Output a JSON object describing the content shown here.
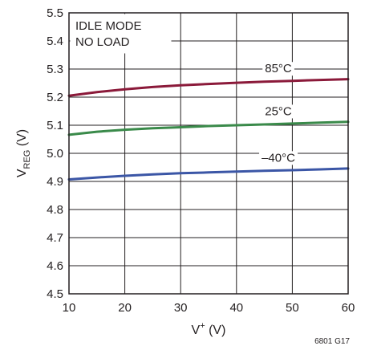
{
  "chart_data": {
    "type": "line",
    "xlim": [
      10,
      60
    ],
    "ylim": [
      4.5,
      5.5
    ],
    "x_ticks": [
      "10",
      "20",
      "30",
      "40",
      "50",
      "60"
    ],
    "y_ticks": [
      "4.5",
      "4.6",
      "4.7",
      "4.8",
      "4.9",
      "5.0",
      "5.1",
      "5.2",
      "5.3",
      "5.4",
      "5.5"
    ],
    "xlabel": {
      "main": "V",
      "sup": "+",
      "unit": " (V)"
    },
    "ylabel": {
      "main": "V",
      "sub": "REG",
      "unit": " (V)"
    },
    "grid": true,
    "annotations": [
      "IDLE MODE",
      "NO LOAD"
    ],
    "series": [
      {
        "name": "85°C",
        "color": "#8b1a3a",
        "x": [
          10,
          15,
          20,
          25,
          30,
          35,
          40,
          45,
          50,
          55,
          60
        ],
        "y": [
          5.205,
          5.218,
          5.228,
          5.236,
          5.242,
          5.247,
          5.251,
          5.255,
          5.258,
          5.261,
          5.264
        ]
      },
      {
        "name": "25°C",
        "color": "#3a8a4a",
        "x": [
          10,
          15,
          20,
          25,
          30,
          35,
          40,
          45,
          50,
          55,
          60
        ],
        "y": [
          5.066,
          5.077,
          5.084,
          5.089,
          5.093,
          5.097,
          5.1,
          5.103,
          5.106,
          5.109,
          5.112
        ]
      },
      {
        "name": "–40°C",
        "color": "#3b56a6",
        "x": [
          10,
          15,
          20,
          25,
          30,
          35,
          40,
          45,
          50,
          55,
          60
        ],
        "y": [
          4.907,
          4.914,
          4.92,
          4.925,
          4.929,
          4.932,
          4.935,
          4.938,
          4.94,
          4.943,
          4.946
        ]
      }
    ]
  },
  "figure_id": "6801 G17"
}
